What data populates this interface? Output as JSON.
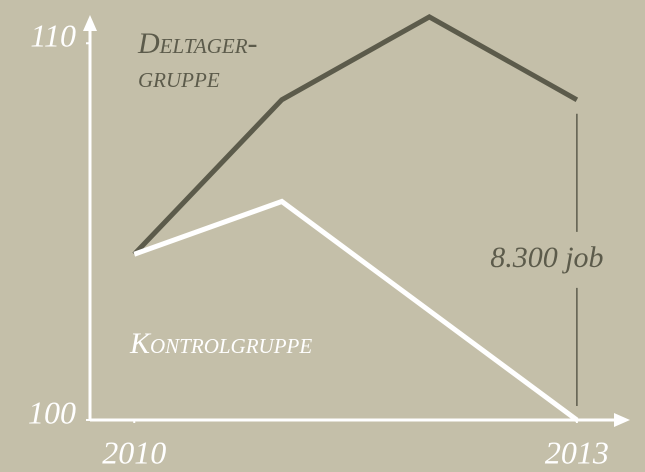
{
  "chart_data": {
    "type": "line",
    "series": [
      {
        "name": "Deltager-gruppe",
        "color": "#5c5b4b",
        "label_color": "#5c5b4b",
        "x": [
          2010,
          2011,
          2012,
          2013
        ],
        "values": [
          104.4,
          108.5,
          110.7,
          108.5
        ]
      },
      {
        "name": "Kontrolgruppe",
        "color": "#ffffff",
        "label_color": "#ffffff",
        "x": [
          2010,
          2011,
          2013
        ],
        "values": [
          104.4,
          105.8,
          100
        ]
      }
    ],
    "xlim": [
      2009.7,
      2013.36
    ],
    "xticks": [
      2010,
      2013
    ],
    "ylim": [
      100,
      110.75
    ],
    "yticks": [
      100,
      110
    ],
    "grid": false,
    "annotations": [
      {
        "text": "8.300 job",
        "x": 2013
      }
    ]
  }
}
